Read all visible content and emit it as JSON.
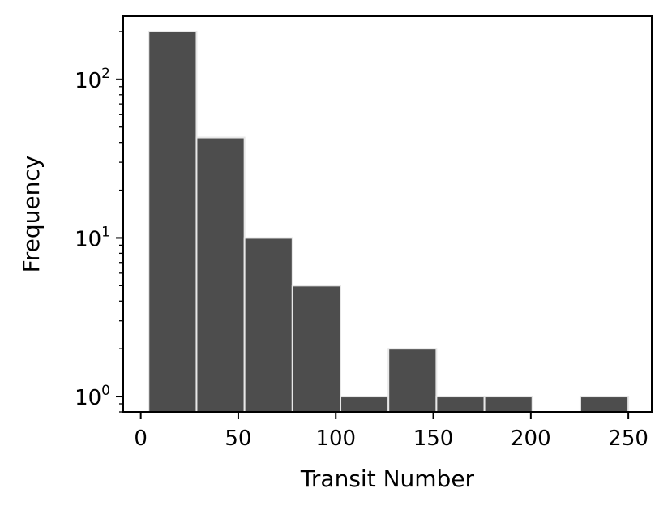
{
  "chart_data": {
    "type": "bar",
    "title": "",
    "xlabel": "Transit Number",
    "ylabel": "Frequency",
    "yscale": "log",
    "grid": false,
    "xlim": [
      -9,
      262
    ],
    "ylim": [
      0.8,
      250
    ],
    "bins": [
      {
        "x0": 4,
        "x1": 28.6,
        "count": 200
      },
      {
        "x0": 28.6,
        "x1": 53.2,
        "count": 43
      },
      {
        "x0": 53.2,
        "x1": 77.8,
        "count": 10
      },
      {
        "x0": 77.8,
        "x1": 102.4,
        "count": 5
      },
      {
        "x0": 102.4,
        "x1": 127,
        "count": 1
      },
      {
        "x0": 127,
        "x1": 151.6,
        "count": 2
      },
      {
        "x0": 151.6,
        "x1": 176.2,
        "count": 1
      },
      {
        "x0": 176.2,
        "x1": 200.8,
        "count": 1
      },
      {
        "x0": 200.8,
        "x1": 225.4,
        "count": 0
      },
      {
        "x0": 225.4,
        "x1": 250,
        "count": 1
      }
    ],
    "xticks": [
      {
        "value": 0,
        "label": "0"
      },
      {
        "value": 50,
        "label": "50"
      },
      {
        "value": 100,
        "label": "100"
      },
      {
        "value": 150,
        "label": "150"
      },
      {
        "value": 200,
        "label": "200"
      },
      {
        "value": 250,
        "label": "250"
      }
    ],
    "yticks": [
      {
        "value": 1,
        "base": "10",
        "exp": "0"
      },
      {
        "value": 10,
        "base": "10",
        "exp": "1"
      },
      {
        "value": 100,
        "base": "10",
        "exp": "2"
      }
    ],
    "colors": {
      "bar": "#4d4d4d",
      "edge": "#e8e8e8",
      "axes": "#000000"
    }
  }
}
